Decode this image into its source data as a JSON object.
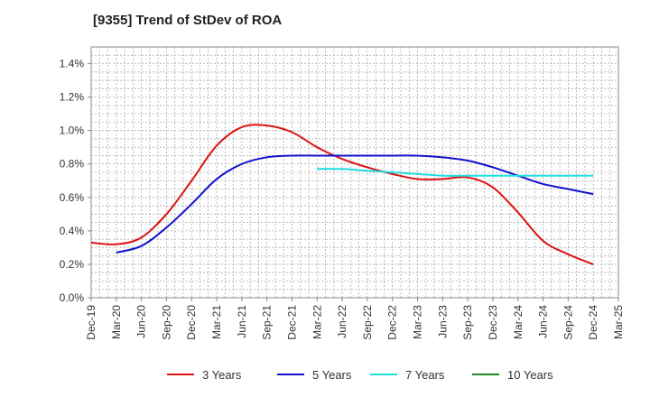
{
  "chart_data": {
    "type": "line",
    "title": "[9355]  Trend of StDev of ROA",
    "xlabel": "",
    "ylabel": "",
    "x_ticks": [
      "Dec-19",
      "Mar-20",
      "Jun-20",
      "Sep-20",
      "Dec-20",
      "Mar-21",
      "Jun-21",
      "Sep-21",
      "Dec-21",
      "Mar-22",
      "Jun-22",
      "Sep-22",
      "Dec-22",
      "Mar-23",
      "Jun-23",
      "Sep-23",
      "Dec-23",
      "Mar-24",
      "Jun-24",
      "Sep-24",
      "Dec-24",
      "Mar-25"
    ],
    "y_ticks": [
      "0.0%",
      "0.2%",
      "0.4%",
      "0.6%",
      "0.8%",
      "1.0%",
      "1.2%",
      "1.4%"
    ],
    "y_tick_values": [
      0,
      0.2,
      0.4,
      0.6,
      0.8,
      1.0,
      1.2,
      1.4
    ],
    "ylim": [
      0,
      1.5
    ],
    "grid": true,
    "legend_position": "bottom",
    "series": [
      {
        "name": "3 Years",
        "color": "#dd1111",
        "x": [
          "Dec-19",
          "Mar-20",
          "Jun-20",
          "Sep-20",
          "Dec-20",
          "Mar-21",
          "Jun-21",
          "Sep-21",
          "Dec-21",
          "Mar-22",
          "Jun-22",
          "Sep-22",
          "Dec-22",
          "Mar-23",
          "Jun-23",
          "Sep-23",
          "Dec-23",
          "Mar-24",
          "Jun-24",
          "Sep-24",
          "Dec-24"
        ],
        "values": [
          0.33,
          0.32,
          0.36,
          0.5,
          0.7,
          0.91,
          1.02,
          1.03,
          0.99,
          0.9,
          0.83,
          0.78,
          0.74,
          0.71,
          0.71,
          0.72,
          0.66,
          0.51,
          0.34,
          0.26,
          0.2
        ]
      },
      {
        "name": "5 Years",
        "color": "#1111cc",
        "x": [
          "Mar-20",
          "Jun-20",
          "Sep-20",
          "Dec-20",
          "Mar-21",
          "Jun-21",
          "Sep-21",
          "Dec-21",
          "Mar-22",
          "Jun-22",
          "Sep-22",
          "Dec-22",
          "Mar-23",
          "Jun-23",
          "Sep-23",
          "Dec-23",
          "Mar-24",
          "Jun-24",
          "Sep-24",
          "Dec-24"
        ],
        "values": [
          0.27,
          0.31,
          0.42,
          0.56,
          0.71,
          0.8,
          0.84,
          0.85,
          0.85,
          0.85,
          0.85,
          0.85,
          0.85,
          0.84,
          0.82,
          0.78,
          0.73,
          0.68,
          0.65,
          0.62
        ]
      },
      {
        "name": "7 Years",
        "color": "#22dddd",
        "x": [
          "Mar-22",
          "Jun-22",
          "Sep-22",
          "Dec-22",
          "Mar-23",
          "Jun-23",
          "Sep-23",
          "Dec-23",
          "Mar-24",
          "Jun-24",
          "Sep-24",
          "Dec-24"
        ],
        "values": [
          0.77,
          0.77,
          0.76,
          0.75,
          0.74,
          0.73,
          0.73,
          0.73,
          0.73,
          0.73,
          0.73,
          0.73
        ]
      },
      {
        "name": "10 Years",
        "color": "#228822",
        "x": [],
        "values": []
      }
    ]
  }
}
